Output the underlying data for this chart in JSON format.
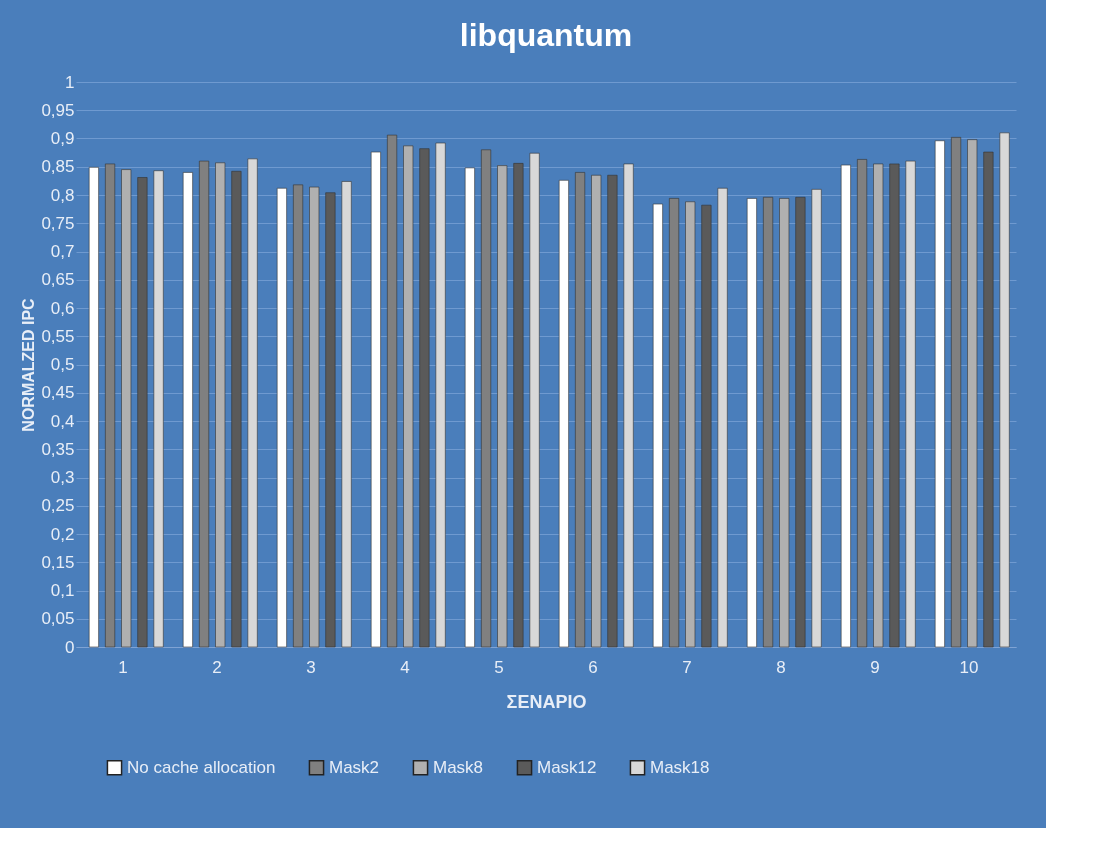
{
  "chart_data": {
    "type": "bar",
    "title": "libquantum",
    "xlabel": "ΣΕΝΑΡΙΟ",
    "ylabel": "NORMALZED IPC",
    "categories": [
      "1",
      "2",
      "3",
      "4",
      "5",
      "6",
      "7",
      "8",
      "9",
      "10"
    ],
    "series": [
      {
        "name": "No cache allocation",
        "color": "#ffffff",
        "values": [
          0.849,
          0.84,
          0.812,
          0.876,
          0.848,
          0.826,
          0.784,
          0.794,
          0.853,
          0.896
        ]
      },
      {
        "name": "Mask2",
        "color": "#808080",
        "values": [
          0.855,
          0.86,
          0.818,
          0.906,
          0.88,
          0.84,
          0.794,
          0.796,
          0.863,
          0.902
        ]
      },
      {
        "name": "Mask8",
        "color": "#b0b0b0",
        "values": [
          0.845,
          0.857,
          0.814,
          0.887,
          0.852,
          0.835,
          0.788,
          0.794,
          0.855,
          0.898
        ]
      },
      {
        "name": "Mask12",
        "color": "#5a5a5a",
        "values": [
          0.831,
          0.842,
          0.804,
          0.882,
          0.856,
          0.835,
          0.782,
          0.796,
          0.855,
          0.876
        ]
      },
      {
        "name": "Mask18",
        "color": "#d8d8d8",
        "values": [
          0.843,
          0.864,
          0.824,
          0.892,
          0.874,
          0.855,
          0.812,
          0.81,
          0.86,
          0.91
        ]
      }
    ],
    "ylim": [
      0,
      1
    ],
    "yticks": [
      0,
      {
        "value": 0.05,
        "label": "0,05"
      },
      {
        "value": 0.1,
        "label": "0,1"
      },
      {
        "value": 0.15,
        "label": "0,15"
      },
      {
        "value": 0.2,
        "label": "0,2"
      },
      {
        "value": 0.25,
        "label": "0,25"
      },
      {
        "value": 0.3,
        "label": "0,3"
      },
      {
        "value": 0.35,
        "label": "0,35"
      },
      {
        "value": 0.4,
        "label": "0,4"
      },
      {
        "value": 0.45,
        "label": "0,45"
      },
      {
        "value": 0.5,
        "label": "0,5"
      },
      {
        "value": 0.55,
        "label": "0,55"
      },
      {
        "value": 0.6,
        "label": "0,6"
      },
      {
        "value": 0.65,
        "label": "0,65"
      },
      {
        "value": 0.7,
        "label": "0,7"
      },
      {
        "value": 0.75,
        "label": "0,75"
      },
      {
        "value": 0.8,
        "label": "0,8"
      },
      {
        "value": 0.85,
        "label": "0,85"
      },
      {
        "value": 0.9,
        "label": "0,9"
      },
      {
        "value": 0.95,
        "label": "0,95"
      },
      1
    ],
    "grid": "y",
    "legend": "bottom"
  }
}
